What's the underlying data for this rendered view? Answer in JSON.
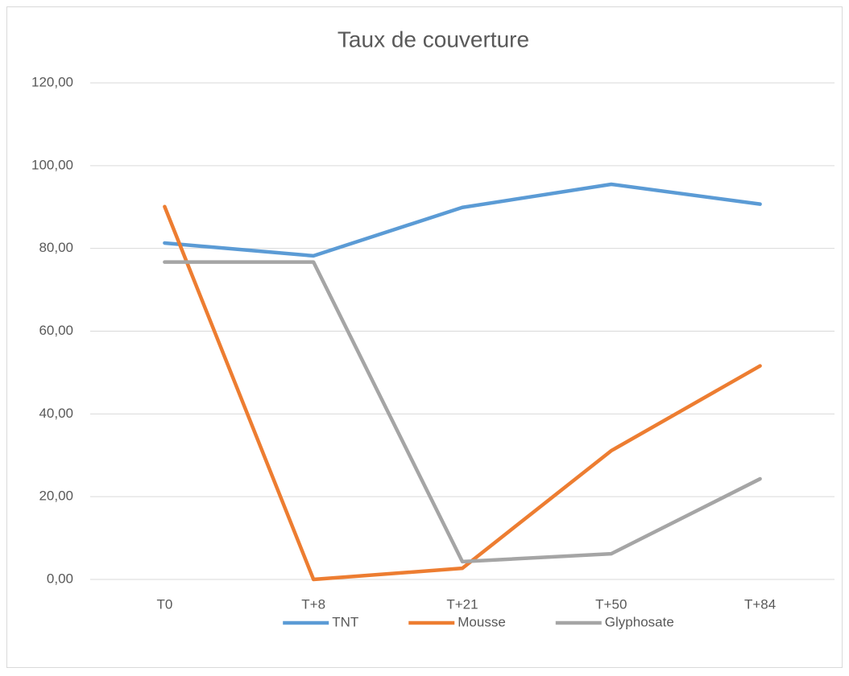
{
  "chart_data": {
    "type": "line",
    "title": "Taux de couverture",
    "categories": [
      "T0",
      "T+8",
      "T+21",
      "T+50",
      "T+84"
    ],
    "series": [
      {
        "name": "TNT",
        "color": "#5b9bd5",
        "values": [
          81.3,
          78.2,
          89.9,
          95.5,
          90.7
        ]
      },
      {
        "name": "Mousse",
        "color": "#ed7d31",
        "values": [
          90.1,
          0,
          2.7,
          31.1,
          51.6
        ]
      },
      {
        "name": "Glyphosate",
        "color": "#a5a5a5",
        "values": [
          76.7,
          76.7,
          4.3,
          6.2,
          24.3
        ]
      }
    ],
    "ylim": [
      0,
      120
    ],
    "yticks": [
      {
        "value": 0,
        "label": "0,00"
      },
      {
        "value": 20,
        "label": "20,00"
      },
      {
        "value": 40,
        "label": "40,00"
      },
      {
        "value": 60,
        "label": "60,00"
      },
      {
        "value": 80,
        "label": "80,00"
      },
      {
        "value": 100,
        "label": "100,00"
      },
      {
        "value": 120,
        "label": "120,00"
      }
    ],
    "grid": true,
    "legend": "bottom"
  }
}
